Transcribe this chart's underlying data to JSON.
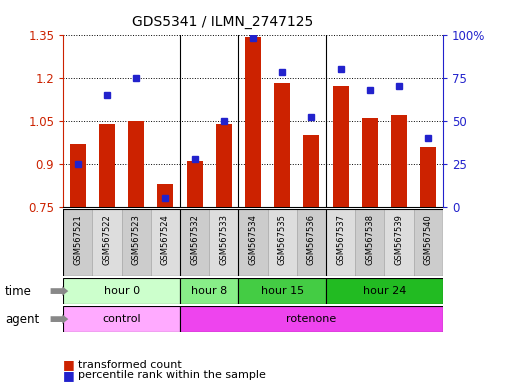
{
  "title": "GDS5341 / ILMN_2747125",
  "samples": [
    "GSM567521",
    "GSM567522",
    "GSM567523",
    "GSM567524",
    "GSM567532",
    "GSM567533",
    "GSM567534",
    "GSM567535",
    "GSM567536",
    "GSM567537",
    "GSM567538",
    "GSM567539",
    "GSM567540"
  ],
  "transformed_count": [
    0.97,
    1.04,
    1.05,
    0.83,
    0.91,
    1.04,
    1.34,
    1.18,
    1.0,
    1.17,
    1.06,
    1.07,
    0.96
  ],
  "percentile_rank": [
    25,
    65,
    75,
    5,
    28,
    50,
    98,
    78,
    52,
    80,
    68,
    70,
    40
  ],
  "ylim_left": [
    0.75,
    1.35
  ],
  "ylim_right": [
    0,
    100
  ],
  "yticks_left": [
    0.75,
    0.9,
    1.05,
    1.2,
    1.35
  ],
  "yticks_right": [
    0,
    25,
    50,
    75,
    100
  ],
  "ytick_labels_right": [
    "0",
    "25",
    "50",
    "75",
    "100%"
  ],
  "groups_time": [
    {
      "label": "hour 0",
      "start": 0,
      "end": 4,
      "color": "#ccffcc"
    },
    {
      "label": "hour 8",
      "start": 4,
      "end": 6,
      "color": "#88ee88"
    },
    {
      "label": "hour 15",
      "start": 6,
      "end": 9,
      "color": "#44cc44"
    },
    {
      "label": "hour 24",
      "start": 9,
      "end": 13,
      "color": "#22bb22"
    }
  ],
  "groups_agent": [
    {
      "label": "control",
      "start": 0,
      "end": 4,
      "color": "#ffaaff"
    },
    {
      "label": "rotenone",
      "start": 4,
      "end": 13,
      "color": "#ee44ee"
    }
  ],
  "bar_color": "#cc2200",
  "dot_color": "#2222cc",
  "bar_width": 0.55,
  "bg_color": "#ffffff",
  "tick_label_color_left": "#cc2200",
  "tick_label_color_right": "#2222cc",
  "baseline": 0.75,
  "group_boundaries": [
    4,
    6,
    9
  ],
  "sample_box_color_even": "#cccccc",
  "sample_box_color_odd": "#dddddd"
}
